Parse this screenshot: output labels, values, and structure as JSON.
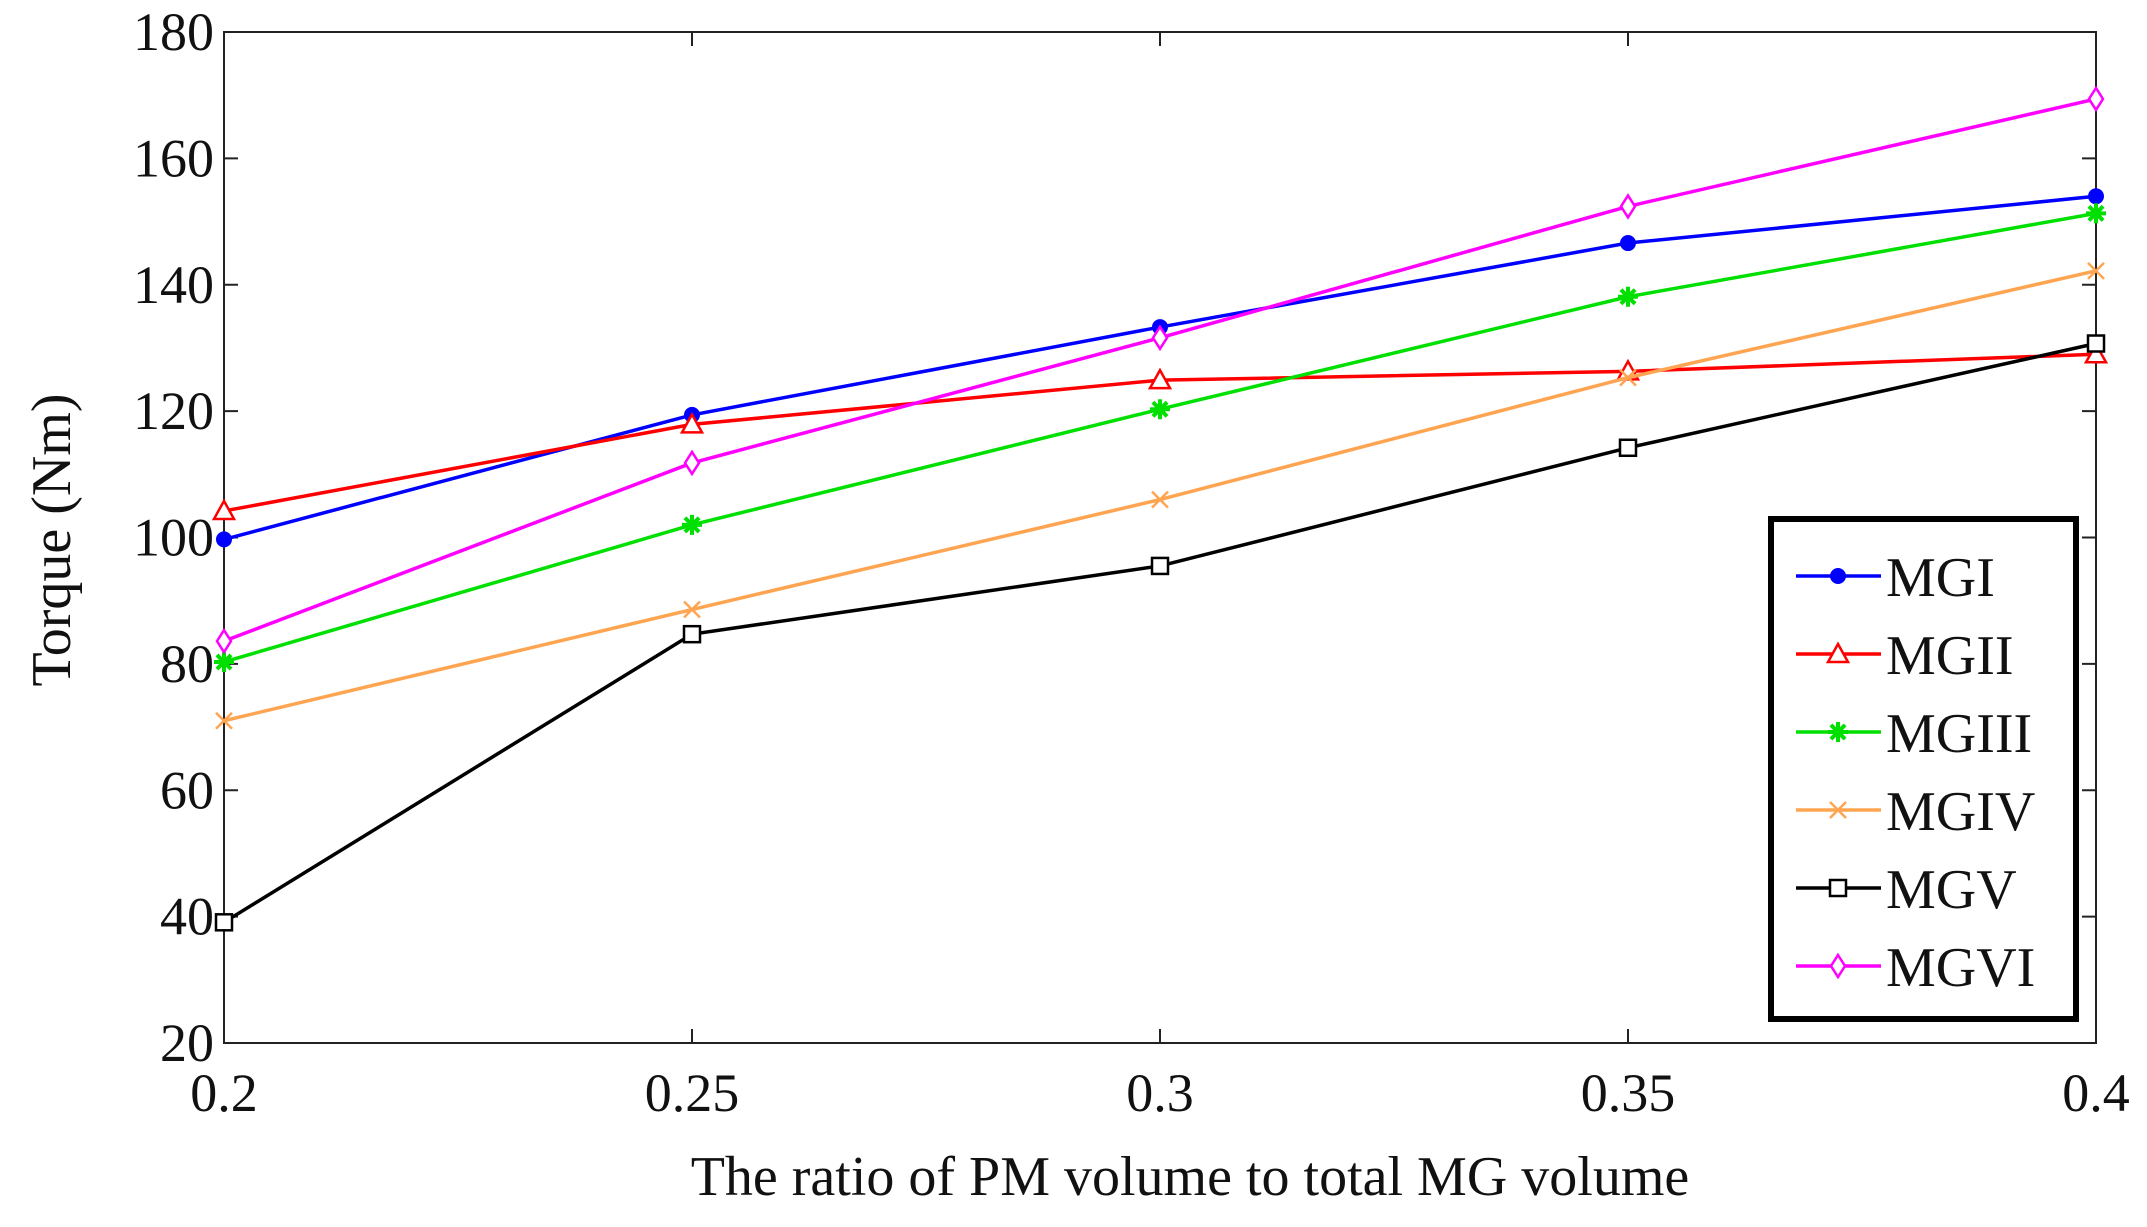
{
  "chart_data": {
    "type": "line",
    "title": "",
    "xlabel": "The ratio of PM volume to total MG volume",
    "ylabel": "Torque (Nm)",
    "xlim": [
      0.2,
      0.4
    ],
    "ylim": [
      20,
      180
    ],
    "x": [
      0.2,
      0.25,
      0.3,
      0.35,
      0.4
    ],
    "x_ticks": [
      "0.2",
      "0.25",
      "0.3",
      "0.35",
      "0.4"
    ],
    "y_ticks": [
      "20",
      "40",
      "60",
      "80",
      "100",
      "120",
      "140",
      "160",
      "180"
    ],
    "grid": false,
    "legend_position": "bottom-right",
    "series": [
      {
        "name": "MGI",
        "color": "#0000ff",
        "marker": "dot",
        "values": [
          99.7,
          119.4,
          133.3,
          146.6,
          154.0
        ]
      },
      {
        "name": "MGII",
        "color": "#ff0000",
        "marker": "triangle",
        "values": [
          104.2,
          117.9,
          124.9,
          126.3,
          129.0
        ]
      },
      {
        "name": "MGIII",
        "color": "#00e000",
        "marker": "star",
        "values": [
          80.3,
          102.0,
          120.3,
          138.1,
          151.3
        ]
      },
      {
        "name": "MGIV",
        "color": "#ffa552",
        "marker": "x",
        "values": [
          71.0,
          88.6,
          106.0,
          125.3,
          142.2
        ]
      },
      {
        "name": "MGV",
        "color": "#000000",
        "marker": "square",
        "values": [
          39.1,
          84.7,
          95.5,
          114.2,
          130.7
        ]
      },
      {
        "name": "MGVI",
        "color": "#ff00ff",
        "marker": "diamond",
        "values": [
          83.6,
          111.8,
          131.6,
          152.4,
          169.4
        ]
      }
    ]
  }
}
